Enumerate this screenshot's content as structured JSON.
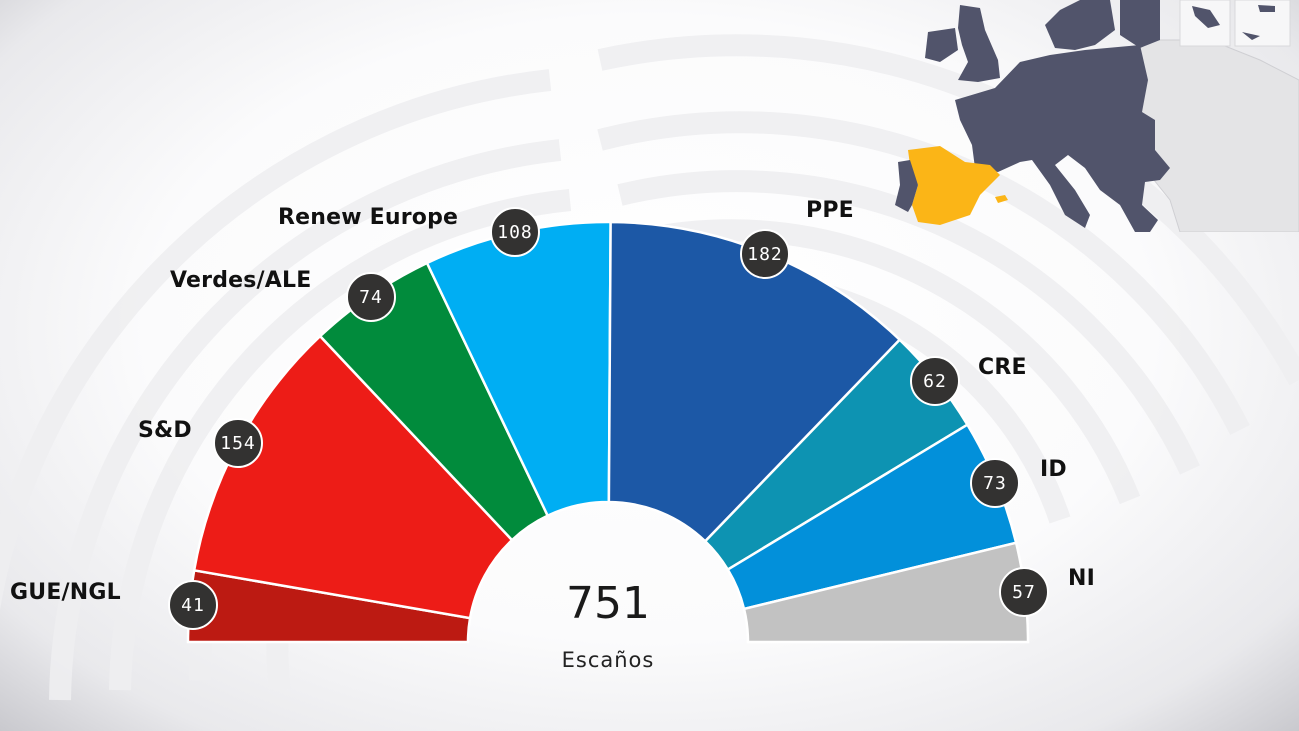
{
  "chart_data": {
    "type": "pie",
    "subtype": "parliament-hemicycle",
    "title": "",
    "total": 751,
    "total_label": "Escaños",
    "categories": [
      "GUE/NGL",
      "S&D",
      "Verdes/ALE",
      "Renew Europe",
      "PPE",
      "CRE",
      "ID",
      "NI"
    ],
    "values": [
      41,
      154,
      74,
      108,
      182,
      62,
      73,
      57
    ],
    "colors": [
      "#BC1A12",
      "#ED1C17",
      "#018B3C",
      "#00AEF3",
      "#1C58A6",
      "#0D93B2",
      "#0290DA",
      "#C2C2C2"
    ],
    "legend_position": "labels-around-arc"
  },
  "labels": {
    "total": "751",
    "total_caption": "Escaños"
  },
  "parties": [
    {
      "name": "GUE/NGL",
      "seats": "41"
    },
    {
      "name": "S&D",
      "seats": "154"
    },
    {
      "name": "Verdes/ALE",
      "seats": "74"
    },
    {
      "name": "Renew Europe",
      "seats": "108"
    },
    {
      "name": "PPE",
      "seats": "182"
    },
    {
      "name": "CRE",
      "seats": "62"
    },
    {
      "name": "ID",
      "seats": "73"
    },
    {
      "name": "NI",
      "seats": "57"
    }
  ],
  "map": {
    "highlighted_country": "Spain",
    "highlight_color": "#FBB517",
    "eu_color": "#51546B",
    "non_eu_color": "#E4E4E6"
  }
}
